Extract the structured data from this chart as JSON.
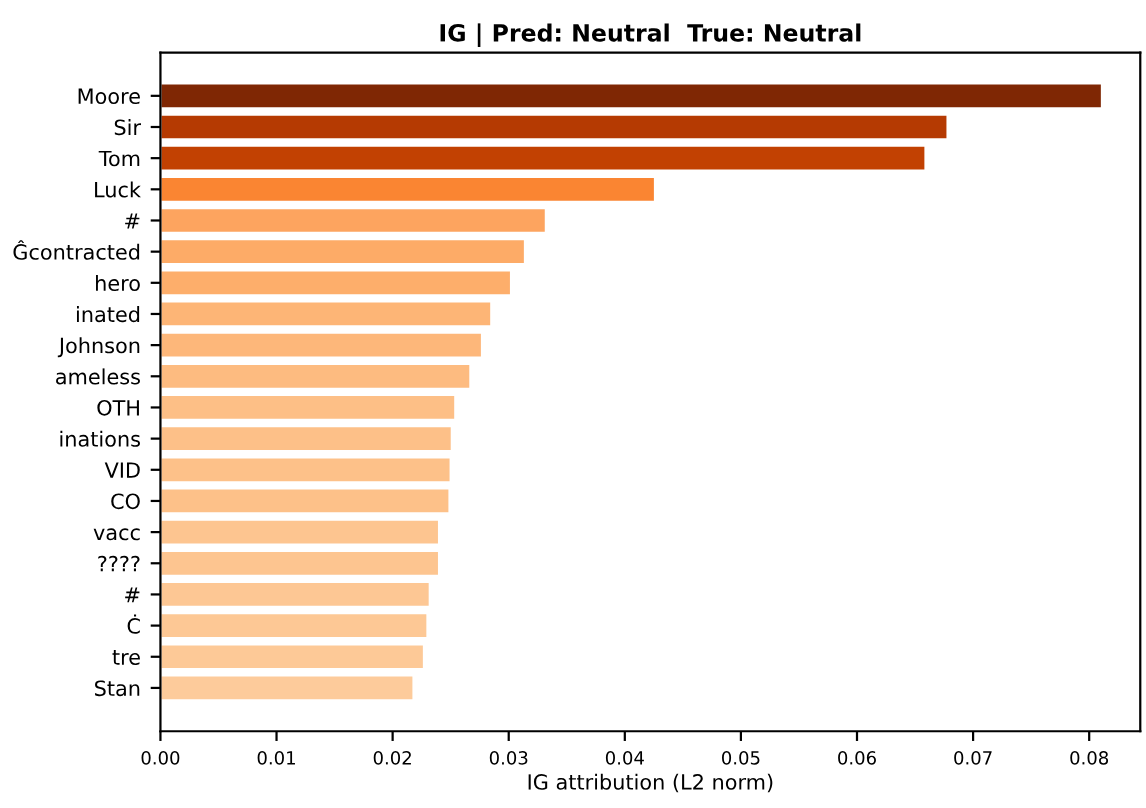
{
  "chart_data": {
    "type": "bar",
    "orientation": "horizontal",
    "title": "IG | Pred: Neutral  True: Neutral",
    "xlabel": "IG attribution (L2 norm)",
    "categories": [
      "Moore",
      "Sir",
      "Tom",
      "Luck",
      "#",
      "Ĝcontracted",
      "hero",
      "inated",
      "Johnson",
      "ameless",
      "OTH",
      "inations",
      "VID",
      "CO",
      "vacc",
      "????",
      "#",
      "Ċ",
      "tre",
      "Stan"
    ],
    "values": [
      0.0811,
      0.0678,
      0.0659,
      0.0426,
      0.0332,
      0.0314,
      0.0302,
      0.0285,
      0.0277,
      0.0267,
      0.0254,
      0.0251,
      0.025,
      0.0249,
      0.024,
      0.024,
      0.0232,
      0.023,
      0.0227,
      0.0218
    ],
    "colors": [
      "#7f2704",
      "#b53a02",
      "#c24102",
      "#fa8532",
      "#fda45f",
      "#fdab67",
      "#fdae6b",
      "#fdb576",
      "#fdb77a",
      "#fdbb80",
      "#fdbf86",
      "#fdc088",
      "#fdc189",
      "#fdc189",
      "#fdc590",
      "#fdc590",
      "#fdc794",
      "#fdc895",
      "#fdc997",
      "#fdcb9b"
    ],
    "xlim": [
      0,
      0.0844
    ],
    "xticks": [
      {
        "value": 0,
        "label": "0.00"
      },
      {
        "value": 0.01,
        "label": "0.01"
      },
      {
        "value": 0.02,
        "label": "0.02"
      },
      {
        "value": 0.03,
        "label": "0.03"
      },
      {
        "value": 0.04,
        "label": "0.04"
      },
      {
        "value": 0.05,
        "label": "0.05"
      },
      {
        "value": 0.06,
        "label": "0.06"
      },
      {
        "value": 0.07,
        "label": "0.07"
      },
      {
        "value": 0.08,
        "label": "0.08"
      }
    ],
    "grid": false,
    "legend": false
  }
}
